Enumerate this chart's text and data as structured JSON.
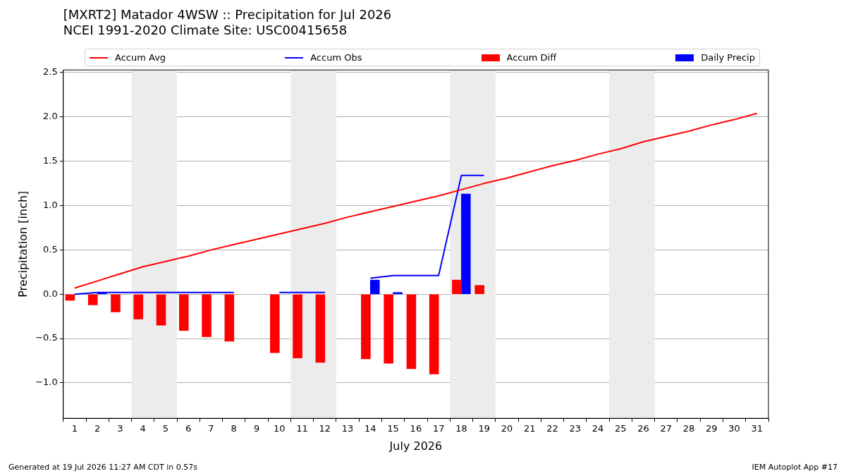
{
  "chart_data": {
    "type": "line",
    "title": [
      "[MXRT2] Matador 4WSW :: Precipitation for Jul 2026",
      "NCEI 1991-2020 Climate Site: USC00415658"
    ],
    "xlabel": "July 2026",
    "ylabel": "Precipitation [inch]",
    "x": [
      1,
      2,
      3,
      4,
      5,
      6,
      7,
      8,
      9,
      10,
      11,
      12,
      13,
      14,
      15,
      16,
      17,
      18,
      19,
      20,
      21,
      22,
      23,
      24,
      25,
      26,
      27,
      28,
      29,
      30,
      31
    ],
    "series": [
      {
        "name": "Accum Avg",
        "color": "#ff0000",
        "values": [
          0.07,
          0.15,
          0.23,
          0.31,
          0.37,
          0.43,
          0.5,
          0.56,
          0.62,
          0.68,
          0.74,
          0.8,
          0.87,
          0.93,
          0.99,
          1.05,
          1.11,
          1.18,
          1.25,
          1.31,
          1.38,
          1.45,
          1.51,
          1.58,
          1.64,
          1.72,
          1.78,
          1.84,
          1.91,
          1.97,
          2.04
        ]
      },
      {
        "name": "Accum Obs",
        "color": "#0000ff",
        "x": [
          1,
          2,
          3,
          4,
          5,
          6,
          7,
          8,
          9,
          10,
          11,
          12,
          13,
          14,
          15,
          16,
          17,
          18,
          19
        ],
        "values": [
          0.0,
          0.02,
          0.02,
          0.02,
          0.02,
          0.02,
          0.02,
          0.02,
          null,
          0.02,
          0.02,
          0.02,
          null,
          0.18,
          0.21,
          0.21,
          0.21,
          1.34,
          1.34
        ]
      },
      {
        "name": "Accum Diff",
        "type": "bar",
        "color": "#ff0000",
        "x": [
          0.8,
          1.8,
          2.8,
          3.8,
          4.8,
          5.8,
          6.8,
          7.8,
          9.8,
          10.8,
          11.8,
          13.8,
          14.8,
          15.8,
          16.8,
          17.8,
          18.8
        ],
        "values": [
          -0.07,
          -0.12,
          -0.2,
          -0.28,
          -0.35,
          -0.41,
          -0.48,
          -0.53,
          -0.66,
          -0.72,
          -0.77,
          -0.73,
          -0.78,
          -0.84,
          -0.9,
          0.16,
          0.1
        ]
      },
      {
        "name": "Daily Precip",
        "type": "bar",
        "color": "#0000ff",
        "x": [
          2.2,
          14.2,
          15.2,
          18.2
        ],
        "values": [
          0.02,
          0.16,
          0.02,
          1.13
        ]
      }
    ],
    "bands": [
      {
        "axis": "x",
        "from": 3.5,
        "to": 5.5,
        "color": "#ececec"
      },
      {
        "axis": "x",
        "from": 10.5,
        "to": 12.5,
        "color": "#ececec"
      },
      {
        "axis": "x",
        "from": 17.5,
        "to": 19.5,
        "color": "#ececec"
      },
      {
        "axis": "x",
        "from": 24.5,
        "to": 26.5,
        "color": "#ececec"
      }
    ],
    "xlim": [
      0.5,
      31.5
    ],
    "xticks": [
      1,
      2,
      3,
      4,
      5,
      6,
      7,
      8,
      9,
      10,
      11,
      12,
      13,
      14,
      15,
      16,
      17,
      18,
      19,
      20,
      21,
      22,
      23,
      24,
      25,
      26,
      27,
      28,
      29,
      30,
      31
    ],
    "ylim": [
      -1.4,
      2.53
    ],
    "yticks": [
      {
        "value": -1,
        "label": "−1.0"
      },
      {
        "value": -0.5,
        "label": "−0.5"
      },
      {
        "value": 0,
        "label": "0.0"
      },
      {
        "value": 0.5,
        "label": "0.5"
      },
      {
        "value": 1,
        "label": "1.0"
      },
      {
        "value": 1.5,
        "label": "1.5"
      },
      {
        "value": 2,
        "label": "2.0"
      },
      {
        "value": 2.5,
        "label": "2.5"
      }
    ],
    "grid": "y",
    "legend": "top",
    "marker": "none",
    "annotations": [
      "Generated at 19 Jul 2026 11:27 AM CDT in 0.57s",
      "IEM Autoplot App #17"
    ]
  }
}
